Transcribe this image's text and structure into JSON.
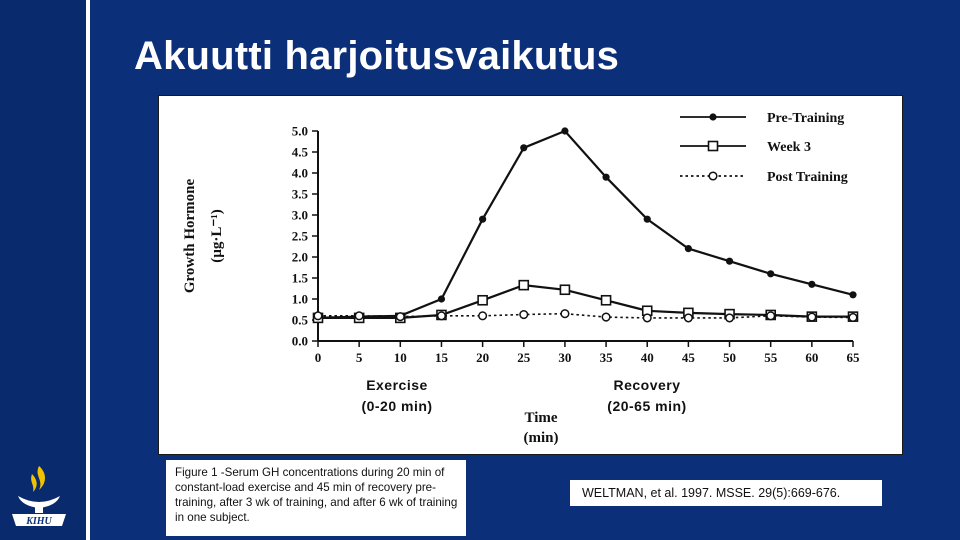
{
  "slide": {
    "title": "Akuutti harjoitusvaikutus",
    "caption": "Figure 1  -Serum GH concentrations during 20 min of constant-load exercise and 45 min of recovery pre-training, after 3 wk of training, and after 6 wk of training in one subject.",
    "citation": "WELTMAN, et al. 1997. MSSE. 29(5):669-676.",
    "logo_text": "KIHU"
  },
  "colors": {
    "background": "#0b2f78",
    "panel": "#ffffff",
    "ink": "#111111"
  },
  "chart_data": {
    "type": "line",
    "title": "",
    "ylabel_line1": "Growth Hormone",
    "ylabel_line2": "(µg·L⁻¹)",
    "xlabel_line1": "Time",
    "xlabel_line2": "(min)",
    "phase_labels": [
      {
        "name": "Exercise",
        "range": "(0-20  min)"
      },
      {
        "name": "Recovery",
        "range": "(20-65  min)"
      }
    ],
    "x": [
      0,
      5,
      10,
      15,
      20,
      25,
      30,
      35,
      40,
      45,
      50,
      55,
      60,
      65
    ],
    "xlim": [
      0,
      65
    ],
    "ylim": [
      0,
      5
    ],
    "yticks": [
      "0.0",
      "0.5",
      "1.0",
      "1.5",
      "2.0",
      "2.5",
      "3.0",
      "3.5",
      "4.0",
      "4.5",
      "5.0"
    ],
    "legend_position": "top-right",
    "grid": false,
    "series": [
      {
        "name": "Pre-Training",
        "marker": "filled-circle",
        "line": "solid",
        "values": [
          0.55,
          0.58,
          0.6,
          1.0,
          2.9,
          4.6,
          5.0,
          3.9,
          2.9,
          2.2,
          1.9,
          1.6,
          1.35,
          1.1
        ]
      },
      {
        "name": "Week 3",
        "marker": "square",
        "line": "solid",
        "values": [
          0.55,
          0.55,
          0.55,
          0.62,
          0.97,
          1.33,
          1.22,
          0.97,
          0.72,
          0.67,
          0.64,
          0.62,
          0.58,
          0.58
        ]
      },
      {
        "name": "Post Training",
        "marker": "open-circle",
        "line": "dotted",
        "values": [
          0.6,
          0.6,
          0.58,
          0.6,
          0.6,
          0.63,
          0.65,
          0.57,
          0.55,
          0.55,
          0.55,
          0.6,
          0.57,
          0.56
        ]
      }
    ]
  }
}
